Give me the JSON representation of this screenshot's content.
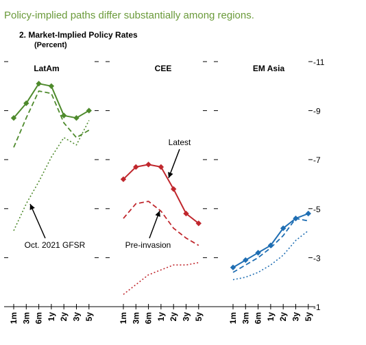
{
  "headline": "Policy-implied paths differ substantially among regions.",
  "chart_data": {
    "type": "line",
    "title": "2. Market-Implied Policy Rates",
    "units": "(Percent)",
    "ylim": [
      1,
      11
    ],
    "yticks": [
      1,
      3,
      5,
      7,
      9,
      11
    ],
    "y_tick_labels": [
      "1",
      "3",
      "5",
      "7",
      "9",
      "11"
    ],
    "y_tick_marks": [
      "-1",
      "-3",
      "-5",
      "-7",
      "-9",
      "-11"
    ],
    "grid": false,
    "categories": [
      "1m",
      "3m",
      "6m",
      "1y",
      "2y",
      "3y",
      "5y"
    ],
    "panels": [
      {
        "name": "LatAm",
        "color": "#4e8a2c",
        "series": [
          {
            "name": "Latest",
            "style": "solid-markers",
            "values": [
              8.7,
              9.3,
              10.1,
              10.0,
              8.8,
              8.7,
              9.0
            ]
          },
          {
            "name": "Pre-invasion",
            "style": "dashed",
            "values": [
              7.5,
              8.7,
              9.8,
              9.7,
              8.5,
              7.9,
              8.2
            ]
          },
          {
            "name": "Oct. 2021 GFSR",
            "style": "dotted",
            "values": [
              4.1,
              5.2,
              6.1,
              7.1,
              7.9,
              7.6,
              8.6
            ]
          }
        ]
      },
      {
        "name": "CEE",
        "color": "#c0272d",
        "series": [
          {
            "name": "Latest",
            "style": "solid-markers",
            "values": [
              6.2,
              6.7,
              6.8,
              6.7,
              5.8,
              4.8,
              4.4
            ]
          },
          {
            "name": "Pre-invasion",
            "style": "dashed",
            "values": [
              4.6,
              5.2,
              5.3,
              4.9,
              4.2,
              3.8,
              3.5
            ]
          },
          {
            "name": "Oct. 2021 GFSR",
            "style": "dotted",
            "values": [
              1.5,
              1.9,
              2.3,
              2.5,
              2.7,
              2.7,
              2.8
            ]
          }
        ]
      },
      {
        "name": "EM Asia",
        "color": "#1f6eb3",
        "series": [
          {
            "name": "Latest",
            "style": "solid-markers",
            "values": [
              2.6,
              2.9,
              3.2,
              3.5,
              4.2,
              4.6,
              4.8
            ]
          },
          {
            "name": "Pre-invasion",
            "style": "dashed",
            "values": [
              2.4,
              2.7,
              3.0,
              3.4,
              3.9,
              4.6,
              4.5
            ]
          },
          {
            "name": "Oct. 2021 GFSR",
            "style": "dotted",
            "values": [
              2.1,
              2.2,
              2.4,
              2.7,
              3.1,
              3.7,
              4.1
            ]
          }
        ]
      }
    ],
    "annotations": [
      {
        "text": "Latest",
        "panel": 1,
        "series": "Latest"
      },
      {
        "text": "Pre-invasion",
        "panel": 1,
        "series": "Pre-invasion"
      },
      {
        "text": "Oct. 2021 GFSR",
        "panel": 0,
        "series": "Oct. 2021 GFSR"
      }
    ]
  }
}
